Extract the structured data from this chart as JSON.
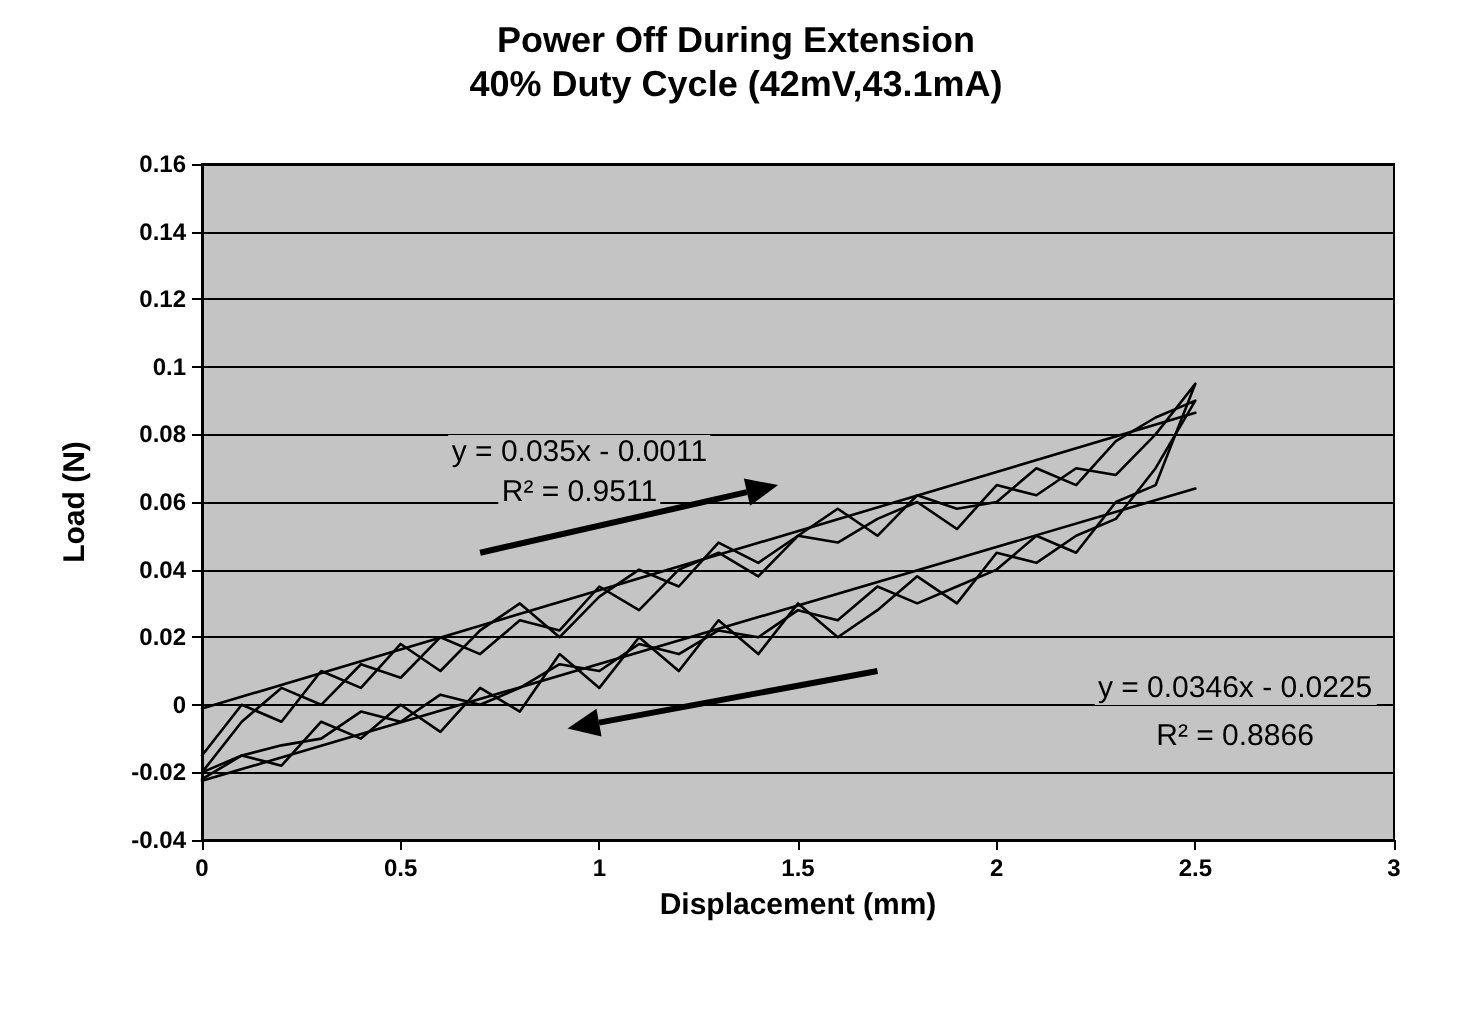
{
  "chart_data": {
    "type": "line",
    "title": "Power Off During Extension",
    "subtitle": "40% Duty Cycle (42mV,43.1mA)",
    "xlabel": "Displacement (mm)",
    "ylabel": "Load (N)",
    "xlim": [
      0,
      3
    ],
    "xticks": [
      0,
      0.5,
      1,
      1.5,
      2,
      2.5,
      3
    ],
    "ylim": [
      -0.04,
      0.16
    ],
    "yticks": [
      -0.04,
      -0.02,
      0,
      0.02,
      0.04,
      0.06,
      0.08,
      0.1,
      0.12,
      0.14,
      0.16
    ],
    "grid": "y",
    "marker": "none",
    "line_style": "solid",
    "annotations": [
      "y = 0.035x - 0.0011",
      "R² = 0.9511",
      "y = 0.0346x - 0.0225",
      "R² = 0.8866"
    ],
    "series": [
      {
        "color": "#000000",
        "x": [
          0,
          0.1,
          0.2,
          0.3,
          0.4,
          0.5,
          0.6,
          0.7,
          0.8,
          0.9,
          1,
          1.1,
          1.2,
          1.3,
          1.4,
          1.5,
          1.6,
          1.7,
          1.8,
          1.9,
          2,
          2.1,
          2.2,
          2.3,
          2.4,
          2.5,
          2.4,
          2.3,
          2.2,
          2.1,
          2,
          1.9,
          1.8,
          1.7,
          1.6,
          1.5,
          1.4,
          1.3,
          1.2,
          1.1,
          1,
          0.9,
          0.8,
          0.7,
          0.6,
          0.5,
          0.4,
          0.3,
          0.2,
          0.1,
          0
        ],
        "values": [
          -0.02,
          -0.005,
          0.005,
          0,
          0.012,
          0.008,
          0.02,
          0.015,
          0.025,
          0.022,
          0.035,
          0.028,
          0.04,
          0.045,
          0.038,
          0.05,
          0.048,
          0.055,
          0.06,
          0.052,
          0.065,
          0.062,
          0.07,
          0.068,
          0.08,
          0.095,
          0.065,
          0.06,
          0.045,
          0.05,
          0.04,
          0.035,
          0.03,
          0.035,
          0.025,
          0.028,
          0.02,
          0.022,
          0.015,
          0.018,
          0.01,
          0.012,
          0.005,
          0,
          0.003,
          -0.005,
          -0.002,
          -0.01,
          -0.012,
          -0.015,
          -0.022
        ]
      },
      {
        "color": "#000000",
        "x": [
          0,
          0.1,
          0.2,
          0.3,
          0.4,
          0.5,
          0.6,
          0.7,
          0.8,
          0.9,
          1,
          1.1,
          1.2,
          1.3,
          1.4,
          1.5,
          1.6,
          1.7,
          1.8,
          1.9,
          2,
          2.1,
          2.2,
          2.3,
          2.4,
          2.5,
          2.4,
          2.3,
          2.2,
          2.1,
          2,
          1.9,
          1.8,
          1.7,
          1.6,
          1.5,
          1.4,
          1.3,
          1.2,
          1.1,
          1,
          0.9,
          0.8,
          0.7,
          0.6,
          0.5,
          0.4,
          0.3,
          0.2,
          0.1,
          0
        ],
        "values": [
          -0.015,
          0,
          -0.005,
          0.01,
          0.005,
          0.018,
          0.01,
          0.022,
          0.03,
          0.02,
          0.032,
          0.04,
          0.035,
          0.048,
          0.042,
          0.05,
          0.058,
          0.05,
          0.062,
          0.058,
          0.06,
          0.07,
          0.065,
          0.078,
          0.085,
          0.09,
          0.07,
          0.055,
          0.05,
          0.042,
          0.045,
          0.03,
          0.038,
          0.028,
          0.02,
          0.03,
          0.015,
          0.025,
          0.01,
          0.02,
          0.005,
          0.015,
          -0.002,
          0.005,
          -0.008,
          0,
          -0.01,
          -0.005,
          -0.018,
          -0.015,
          -0.02
        ]
      },
      {
        "color": "#000000",
        "x": [
          0,
          2.5
        ],
        "values": [
          -0.0011,
          0.0864
        ]
      },
      {
        "color": "#000000",
        "x": [
          0,
          2.5
        ],
        "values": [
          -0.0225,
          0.064
        ]
      }
    ]
  }
}
